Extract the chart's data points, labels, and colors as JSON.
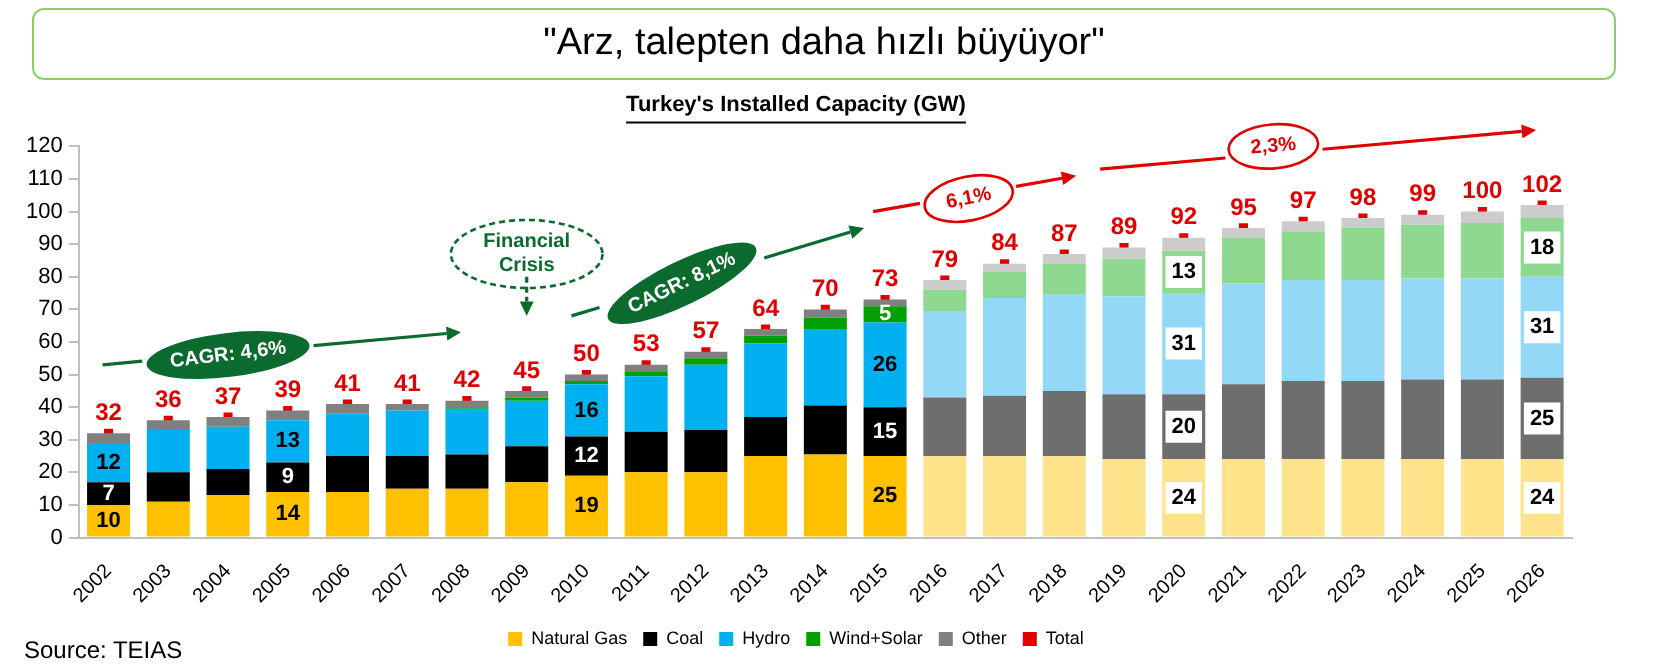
{
  "chart_data": {
    "type": "bar",
    "stacked": true,
    "title": "\"Arz, talepten daha hızlı büyüyor\"",
    "subtitle": "Turkey's Installed Capacity (GW)",
    "categories": [
      "2002",
      "2003",
      "2004",
      "2005",
      "2006",
      "2007",
      "2008",
      "2009",
      "2010",
      "2011",
      "2012",
      "2013",
      "2014",
      "2015",
      "2016",
      "2017",
      "2018",
      "2019",
      "2020",
      "2021",
      "2022",
      "2023",
      "2024",
      "2025",
      "2026"
    ],
    "series": [
      {
        "name": "Natural Gas",
        "color": "#ffc000",
        "colors": [
          "#ffc000",
          "#ffc000",
          "#ffc000",
          "#ffc000",
          "#ffc000",
          "#ffc000",
          "#ffc000",
          "#ffc000",
          "#ffc000",
          "#ffc000",
          "#ffc000",
          "#ffc000",
          "#ffc000",
          "#ffc000",
          "#ffe38a",
          "#ffe38a",
          "#ffe38a",
          "#ffe38a",
          "#ffe38a",
          "#ffe38a",
          "#ffe38a",
          "#ffe38a",
          "#ffe38a",
          "#ffe38a",
          "#ffe38a"
        ],
        "values": [
          10,
          11,
          13,
          14,
          14,
          15,
          15,
          17,
          19,
          20,
          20,
          25,
          25.5,
          25,
          25,
          25,
          25,
          24,
          24,
          24,
          24,
          24,
          24,
          24,
          24
        ],
        "value_labels": [
          "10",
          null,
          null,
          "14",
          null,
          null,
          null,
          null,
          "19",
          null,
          null,
          null,
          null,
          "25",
          null,
          null,
          null,
          null,
          "24",
          null,
          null,
          null,
          null,
          null,
          "24"
        ]
      },
      {
        "name": "Coal",
        "color": "#000000",
        "colors": [
          "#000000",
          "#000000",
          "#000000",
          "#000000",
          "#000000",
          "#000000",
          "#000000",
          "#000000",
          "#000000",
          "#000000",
          "#000000",
          "#000000",
          "#000000",
          "#000000",
          "#6e6e6e",
          "#6e6e6e",
          "#6e6e6e",
          "#6e6e6e",
          "#6e6e6e",
          "#6e6e6e",
          "#6e6e6e",
          "#6e6e6e",
          "#6e6e6e",
          "#6e6e6e",
          "#6e6e6e"
        ],
        "values": [
          7,
          9,
          8,
          9,
          11,
          10,
          10.5,
          11,
          12,
          12.5,
          13,
          12,
          15,
          15,
          18,
          18.5,
          20,
          20,
          20,
          23,
          24,
          24,
          24.5,
          24.5,
          25
        ],
        "value_labels": [
          "7",
          null,
          null,
          "9",
          null,
          null,
          null,
          null,
          "12",
          null,
          null,
          null,
          null,
          "15",
          null,
          null,
          null,
          null,
          "20",
          null,
          null,
          null,
          null,
          null,
          "25"
        ]
      },
      {
        "name": "Hydro",
        "color": "#00b0f0",
        "colors": [
          "#00b0f0",
          "#00b0f0",
          "#00b0f0",
          "#00b0f0",
          "#00b0f0",
          "#00b0f0",
          "#00b0f0",
          "#00b0f0",
          "#00b0f0",
          "#00b0f0",
          "#00b0f0",
          "#00b0f0",
          "#00b0f0",
          "#00b0f0",
          "#93d9f7",
          "#93d9f7",
          "#93d9f7",
          "#93d9f7",
          "#93d9f7",
          "#93d9f7",
          "#93d9f7",
          "#93d9f7",
          "#93d9f7",
          "#93d9f7",
          "#93d9f7"
        ],
        "values": [
          12,
          13,
          13,
          13,
          13,
          14,
          14,
          14,
          16,
          17,
          20,
          22.5,
          23.5,
          26,
          26.5,
          30,
          29.5,
          30,
          31,
          31,
          31,
          31,
          31,
          31,
          31
        ],
        "value_labels": [
          "12",
          null,
          null,
          "13",
          null,
          null,
          null,
          null,
          "16",
          null,
          null,
          null,
          null,
          "26",
          null,
          null,
          null,
          null,
          "31",
          null,
          null,
          null,
          null,
          null,
          "31"
        ]
      },
      {
        "name": "Wind+Solar",
        "color": "#00a000",
        "colors": [
          "#00a000",
          "#00a000",
          "#00a000",
          "#00a000",
          "#00a000",
          "#00a000",
          "#00a000",
          "#00a000",
          "#00a000",
          "#00a000",
          "#00a000",
          "#00a000",
          "#00a000",
          "#00a000",
          "#8fd88f",
          "#8fd88f",
          "#8fd88f",
          "#8fd88f",
          "#8fd88f",
          "#8fd88f",
          "#8fd88f",
          "#8fd88f",
          "#8fd88f",
          "#8fd88f",
          "#8fd88f"
        ],
        "values": [
          0,
          0,
          0,
          0,
          0,
          0,
          0.5,
          1,
          1,
          1.5,
          2,
          2.5,
          3.5,
          5,
          6.5,
          8,
          9.5,
          11.5,
          13,
          14,
          15,
          16,
          16.5,
          17,
          18
        ],
        "value_labels": [
          null,
          null,
          null,
          null,
          null,
          null,
          null,
          null,
          null,
          null,
          null,
          null,
          null,
          "5",
          null,
          null,
          null,
          null,
          "13",
          null,
          null,
          null,
          null,
          null,
          "18"
        ]
      },
      {
        "name": "Other",
        "color": "#808080",
        "colors": [
          "#808080",
          "#808080",
          "#808080",
          "#808080",
          "#808080",
          "#808080",
          "#808080",
          "#808080",
          "#808080",
          "#808080",
          "#808080",
          "#808080",
          "#808080",
          "#808080",
          "#cccccc",
          "#cccccc",
          "#cccccc",
          "#cccccc",
          "#cccccc",
          "#cccccc",
          "#cccccc",
          "#cccccc",
          "#cccccc",
          "#cccccc",
          "#cccccc"
        ],
        "values": [
          3,
          3,
          3,
          3,
          3,
          2,
          2,
          2,
          2,
          2,
          2,
          2,
          2.5,
          2,
          3,
          2.5,
          3,
          3.5,
          4,
          3,
          3,
          3,
          3,
          3.5,
          4
        ]
      },
      {
        "name": "Total",
        "type": "scatter",
        "marker": "square",
        "color": "#e00000",
        "values": [
          32,
          36,
          37,
          39,
          41,
          41,
          42,
          45,
          50,
          53,
          57,
          64,
          70,
          73,
          79,
          84,
          87,
          89,
          92,
          95,
          97,
          98,
          99,
          100,
          102
        ],
        "value_labels": [
          "32",
          "36",
          "37",
          "39",
          "41",
          "41",
          "42",
          "45",
          "50",
          "53",
          "57",
          "64",
          "70",
          "73",
          "79",
          "84",
          "87",
          "89",
          "92",
          "95",
          "97",
          "98",
          "99",
          "100",
          "102"
        ]
      }
    ],
    "ylim": [
      0,
      120
    ],
    "yticks": [
      0,
      10,
      20,
      30,
      40,
      50,
      60,
      70,
      80,
      90,
      100,
      110,
      120
    ],
    "grid": false,
    "legend": "bottom",
    "annotations": [
      "CAGR: 4,6%",
      "Financial Crisis",
      "CAGR: 8,1%",
      "6,1%",
      "2,3%",
      "Source: TEIAS"
    ]
  }
}
